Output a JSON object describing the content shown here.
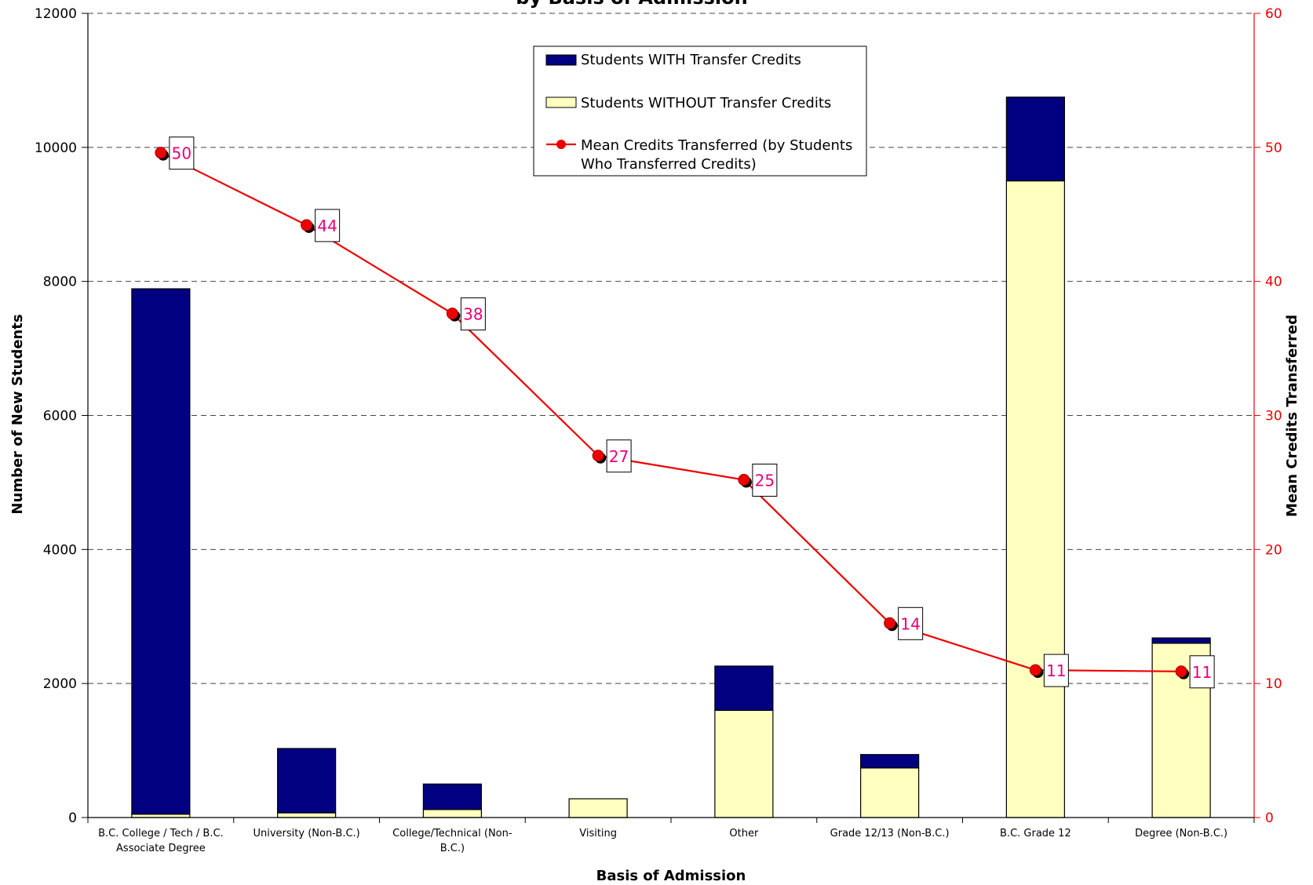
{
  "chart_data": {
    "type": "bar",
    "title": "by Basis of Admission",
    "xlabel": "Basis of Admission",
    "ylabel": "Number of New Students",
    "y2label": "Mean Credits Transferred",
    "ylim": [
      0,
      12000
    ],
    "y2lim": [
      0,
      60
    ],
    "yticks": [
      "0",
      "2000",
      "4000",
      "6000",
      "8000",
      "10000",
      "12000"
    ],
    "y2ticks": [
      "0",
      "10",
      "20",
      "30",
      "40",
      "50",
      "60"
    ],
    "categories": [
      "B.C. College / Tech / B.C. Associate Degree",
      "University (Non-B.C.)",
      "College/Technical (Non-B.C.)",
      "Visiting",
      "Other",
      "Grade 12/13 (Non-B.C.)",
      "B.C. Grade 12",
      "Degree (Non-B.C.)"
    ],
    "category_lines": [
      [
        "B.C. College / Tech / B.C.",
        "Associate Degree"
      ],
      [
        "University (Non-B.C.)"
      ],
      [
        "College/Technical (Non-",
        "B.C.)"
      ],
      [
        "Visiting"
      ],
      [
        "Other"
      ],
      [
        "Grade 12/13 (Non-B.C.)"
      ],
      [
        "B.C. Grade 12"
      ],
      [
        "Degree (Non-B.C.)"
      ]
    ],
    "series": [
      {
        "name": "Students WITHOUT Transfer Credits",
        "kind": "bar-stacked-bottom",
        "color": "#ffffc0",
        "values": [
          50,
          70,
          120,
          280,
          1600,
          740,
          9500,
          2600
        ]
      },
      {
        "name": "Students WITH Transfer Credits",
        "kind": "bar-stacked-top",
        "color": "#000080",
        "values": [
          7840,
          960,
          380,
          0,
          660,
          200,
          1250,
          80
        ]
      },
      {
        "name": "Mean Credits Transferred (by Students Who Transferred Credits)",
        "kind": "line-secondary-axis",
        "color": "#ee0000",
        "values": [
          49.6,
          44.2,
          37.6,
          27.0,
          25.2,
          14.5,
          11.0,
          10.9
        ],
        "labels": [
          "50",
          "44",
          "38",
          "27",
          "25",
          "14",
          "11",
          "11"
        ]
      }
    ],
    "legend": {
      "placement": "top-center",
      "items": [
        "Students WITH Transfer Credits",
        "Students WITHOUT Transfer Credits",
        [
          "Mean Credits Transferred (by Students",
          "Who Transferred Credits)"
        ]
      ]
    },
    "grid": true,
    "axis_color_right": "#ee0000",
    "label_color": "#e8007a"
  }
}
